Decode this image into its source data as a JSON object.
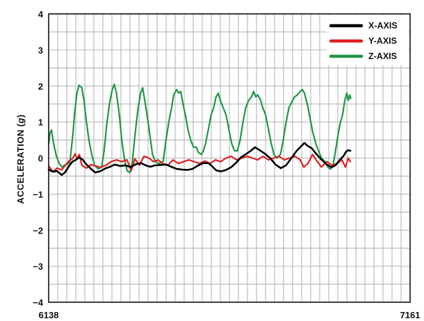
{
  "chart_data": {
    "type": "line",
    "ylabel": "ACCELERATION (g)",
    "ylabel_main": "ACCELERATION (",
    "ylabel_unit": "g",
    "ylabel_close": ")",
    "xlim": [
      6138,
      7161
    ],
    "ylim": [
      -4,
      4
    ],
    "x_tick_labels": [
      "6138",
      "7161"
    ],
    "y_ticks": [
      4,
      3,
      2,
      1,
      0,
      -1,
      -2,
      -3,
      -4
    ],
    "y_tick_labels": [
      "4",
      "3",
      "2",
      "1",
      "0",
      "−1",
      "−2",
      "−3",
      "−4"
    ],
    "grid": true,
    "legend_position": "top-right",
    "series": [
      {
        "name": "X-AXIS",
        "color": "#000000",
        "points": [
          [
            6138,
            -0.32
          ],
          [
            6150,
            -0.38
          ],
          [
            6162,
            -0.36
          ],
          [
            6175,
            -0.47
          ],
          [
            6185,
            -0.39
          ],
          [
            6195,
            -0.23
          ],
          [
            6205,
            -0.1
          ],
          [
            6215,
            -0.05
          ],
          [
            6225,
            0.02
          ],
          [
            6235,
            -0.05
          ],
          [
            6245,
            -0.18
          ],
          [
            6258,
            -0.3
          ],
          [
            6270,
            -0.4
          ],
          [
            6285,
            -0.36
          ],
          [
            6300,
            -0.28
          ],
          [
            6312,
            -0.24
          ],
          [
            6325,
            -0.18
          ],
          [
            6340,
            -0.22
          ],
          [
            6355,
            -0.2
          ],
          [
            6370,
            -0.25
          ],
          [
            6385,
            -0.17
          ],
          [
            6400,
            -0.14
          ],
          [
            6412,
            -0.2
          ],
          [
            6425,
            -0.24
          ],
          [
            6440,
            -0.2
          ],
          [
            6455,
            -0.19
          ],
          [
            6470,
            -0.18
          ],
          [
            6485,
            -0.24
          ],
          [
            6500,
            -0.3
          ],
          [
            6515,
            -0.32
          ],
          [
            6530,
            -0.33
          ],
          [
            6545,
            -0.3
          ],
          [
            6560,
            -0.21
          ],
          [
            6575,
            -0.14
          ],
          [
            6590,
            -0.14
          ],
          [
            6600,
            -0.22
          ],
          [
            6612,
            -0.34
          ],
          [
            6625,
            -0.37
          ],
          [
            6640,
            -0.33
          ],
          [
            6655,
            -0.25
          ],
          [
            6670,
            -0.12
          ],
          [
            6682,
            0.02
          ],
          [
            6695,
            0.1
          ],
          [
            6710,
            0.2
          ],
          [
            6722,
            0.3
          ],
          [
            6735,
            0.22
          ],
          [
            6750,
            0.12
          ],
          [
            6765,
            0.0
          ],
          [
            6780,
            -0.18
          ],
          [
            6795,
            -0.28
          ],
          [
            6810,
            -0.2
          ],
          [
            6825,
            0.0
          ],
          [
            6840,
            0.2
          ],
          [
            6852,
            0.32
          ],
          [
            6862,
            0.42
          ],
          [
            6872,
            0.33
          ],
          [
            6882,
            0.28
          ],
          [
            6895,
            0.12
          ],
          [
            6910,
            -0.04
          ],
          [
            6925,
            -0.18
          ],
          [
            6938,
            -0.25
          ],
          [
            6950,
            -0.2
          ],
          [
            6962,
            -0.05
          ],
          [
            6972,
            0.05
          ],
          [
            6980,
            0.18
          ],
          [
            6986,
            0.22
          ],
          [
            6992,
            0.2
          ]
        ]
      },
      {
        "name": "Y-AXIS",
        "color": "#dd2020",
        "points": [
          [
            6138,
            -0.22
          ],
          [
            6150,
            -0.38
          ],
          [
            6162,
            -0.28
          ],
          [
            6175,
            -0.33
          ],
          [
            6185,
            -0.2
          ],
          [
            6195,
            -0.08
          ],
          [
            6205,
            -0.02
          ],
          [
            6213,
            0.12
          ],
          [
            6218,
            -0.02
          ],
          [
            6225,
            0.1
          ],
          [
            6232,
            -0.2
          ],
          [
            6245,
            -0.28
          ],
          [
            6258,
            -0.18
          ],
          [
            6270,
            -0.22
          ],
          [
            6285,
            -0.25
          ],
          [
            6300,
            -0.2
          ],
          [
            6315,
            -0.1
          ],
          [
            6330,
            -0.05
          ],
          [
            6345,
            -0.1
          ],
          [
            6360,
            -0.05
          ],
          [
            6372,
            -0.35
          ],
          [
            6382,
            -0.02
          ],
          [
            6395,
            -0.2
          ],
          [
            6408,
            0.05
          ],
          [
            6422,
            0.0
          ],
          [
            6435,
            -0.1
          ],
          [
            6448,
            -0.05
          ],
          [
            6460,
            -0.15
          ],
          [
            6475,
            -0.2
          ],
          [
            6490,
            -0.05
          ],
          [
            6505,
            -0.15
          ],
          [
            6520,
            -0.1
          ],
          [
            6535,
            -0.05
          ],
          [
            6550,
            -0.1
          ],
          [
            6565,
            -0.15
          ],
          [
            6580,
            -0.08
          ],
          [
            6595,
            -0.15
          ],
          [
            6610,
            -0.05
          ],
          [
            6625,
            -0.1
          ],
          [
            6640,
            0.0
          ],
          [
            6655,
            0.05
          ],
          [
            6670,
            -0.05
          ],
          [
            6685,
            0.0
          ],
          [
            6700,
            0.05
          ],
          [
            6715,
            0.0
          ],
          [
            6730,
            -0.05
          ],
          [
            6745,
            0.05
          ],
          [
            6760,
            -0.05
          ],
          [
            6775,
            0.0
          ],
          [
            6790,
            0.05
          ],
          [
            6805,
            -0.05
          ],
          [
            6820,
            0.0
          ],
          [
            6835,
            0.05
          ],
          [
            6850,
            -0.05
          ],
          [
            6860,
            -0.25
          ],
          [
            6872,
            -0.15
          ],
          [
            6885,
            0.1
          ],
          [
            6895,
            -0.05
          ],
          [
            6910,
            -0.25
          ],
          [
            6925,
            -0.1
          ],
          [
            6940,
            -0.2
          ],
          [
            6955,
            -0.15
          ],
          [
            6968,
            -0.05
          ],
          [
            6978,
            -0.25
          ],
          [
            6986,
            0.0
          ],
          [
            6992,
            -0.1
          ]
        ]
      },
      {
        "name": "Z-AXIS",
        "color": "#1e9645",
        "points": [
          [
            6138,
            0.4
          ],
          [
            6142,
            0.7
          ],
          [
            6146,
            0.78
          ],
          [
            6152,
            0.4
          ],
          [
            6160,
            0.05
          ],
          [
            6168,
            -0.15
          ],
          [
            6176,
            -0.25
          ],
          [
            6183,
            -0.2
          ],
          [
            6190,
            -0.18
          ],
          [
            6198,
            -0.12
          ],
          [
            6206,
            0.6
          ],
          [
            6212,
            1.3
          ],
          [
            6218,
            1.8
          ],
          [
            6224,
            2.02
          ],
          [
            6232,
            1.95
          ],
          [
            6238,
            1.6
          ],
          [
            6245,
            1.0
          ],
          [
            6252,
            0.5
          ],
          [
            6260,
            0.1
          ],
          [
            6268,
            -0.2
          ],
          [
            6278,
            -0.3
          ],
          [
            6288,
            -0.25
          ],
          [
            6295,
            0.2
          ],
          [
            6302,
            0.9
          ],
          [
            6310,
            1.5
          ],
          [
            6318,
            1.9
          ],
          [
            6324,
            2.05
          ],
          [
            6330,
            1.8
          ],
          [
            6338,
            1.2
          ],
          [
            6345,
            0.5
          ],
          [
            6352,
            0.0
          ],
          [
            6360,
            -0.35
          ],
          [
            6368,
            -0.4
          ],
          [
            6375,
            -0.1
          ],
          [
            6382,
            0.6
          ],
          [
            6390,
            1.3
          ],
          [
            6398,
            1.8
          ],
          [
            6404,
            1.95
          ],
          [
            6410,
            1.6
          ],
          [
            6418,
            1.1
          ],
          [
            6425,
            0.6
          ],
          [
            6432,
            0.1
          ],
          [
            6440,
            -0.1
          ],
          [
            6450,
            -0.15
          ],
          [
            6462,
            -0.1
          ],
          [
            6470,
            0.5
          ],
          [
            6478,
            1.0
          ],
          [
            6486,
            1.4
          ],
          [
            6492,
            1.75
          ],
          [
            6500,
            1.9
          ],
          [
            6506,
            1.8
          ],
          [
            6512,
            1.85
          ],
          [
            6518,
            1.5
          ],
          [
            6525,
            1.2
          ],
          [
            6532,
            0.8
          ],
          [
            6540,
            0.5
          ],
          [
            6548,
            0.3
          ],
          [
            6556,
            0.3
          ],
          [
            6562,
            0.15
          ],
          [
            6570,
            0.1
          ],
          [
            6576,
            0.2
          ],
          [
            6582,
            0.4
          ],
          [
            6590,
            0.8
          ],
          [
            6598,
            1.2
          ],
          [
            6605,
            1.4
          ],
          [
            6612,
            1.7
          ],
          [
            6618,
            1.8
          ],
          [
            6624,
            1.6
          ],
          [
            6632,
            1.4
          ],
          [
            6640,
            1.2
          ],
          [
            6648,
            0.8
          ],
          [
            6656,
            0.4
          ],
          [
            6664,
            0.2
          ],
          [
            6672,
            0.2
          ],
          [
            6680,
            0.5
          ],
          [
            6688,
            1.0
          ],
          [
            6696,
            1.4
          ],
          [
            6704,
            1.6
          ],
          [
            6712,
            1.7
          ],
          [
            6718,
            1.85
          ],
          [
            6724,
            1.7
          ],
          [
            6730,
            1.75
          ],
          [
            6738,
            1.6
          ],
          [
            6744,
            1.4
          ],
          [
            6752,
            1.2
          ],
          [
            6760,
            0.8
          ],
          [
            6768,
            0.4
          ],
          [
            6776,
            0.1
          ],
          [
            6784,
            0.0
          ],
          [
            6794,
            0.1
          ],
          [
            6802,
            0.5
          ],
          [
            6810,
            1.0
          ],
          [
            6818,
            1.4
          ],
          [
            6826,
            1.55
          ],
          [
            6834,
            1.7
          ],
          [
            6842,
            1.75
          ],
          [
            6850,
            1.85
          ],
          [
            6856,
            1.9
          ],
          [
            6862,
            1.8
          ],
          [
            6870,
            1.5
          ],
          [
            6878,
            1.1
          ],
          [
            6886,
            0.7
          ],
          [
            6894,
            0.4
          ],
          [
            6902,
            0.2
          ],
          [
            6910,
            0.0
          ],
          [
            6920,
            -0.1
          ],
          [
            6928,
            -0.25
          ],
          [
            6935,
            -0.3
          ],
          [
            6942,
            -0.25
          ],
          [
            6950,
            0.2
          ],
          [
            6958,
            0.7
          ],
          [
            6964,
            1.0
          ],
          [
            6970,
            1.2
          ],
          [
            6976,
            1.6
          ],
          [
            6982,
            1.8
          ],
          [
            6986,
            1.6
          ],
          [
            6990,
            1.75
          ],
          [
            6993,
            1.65
          ]
        ]
      }
    ]
  }
}
